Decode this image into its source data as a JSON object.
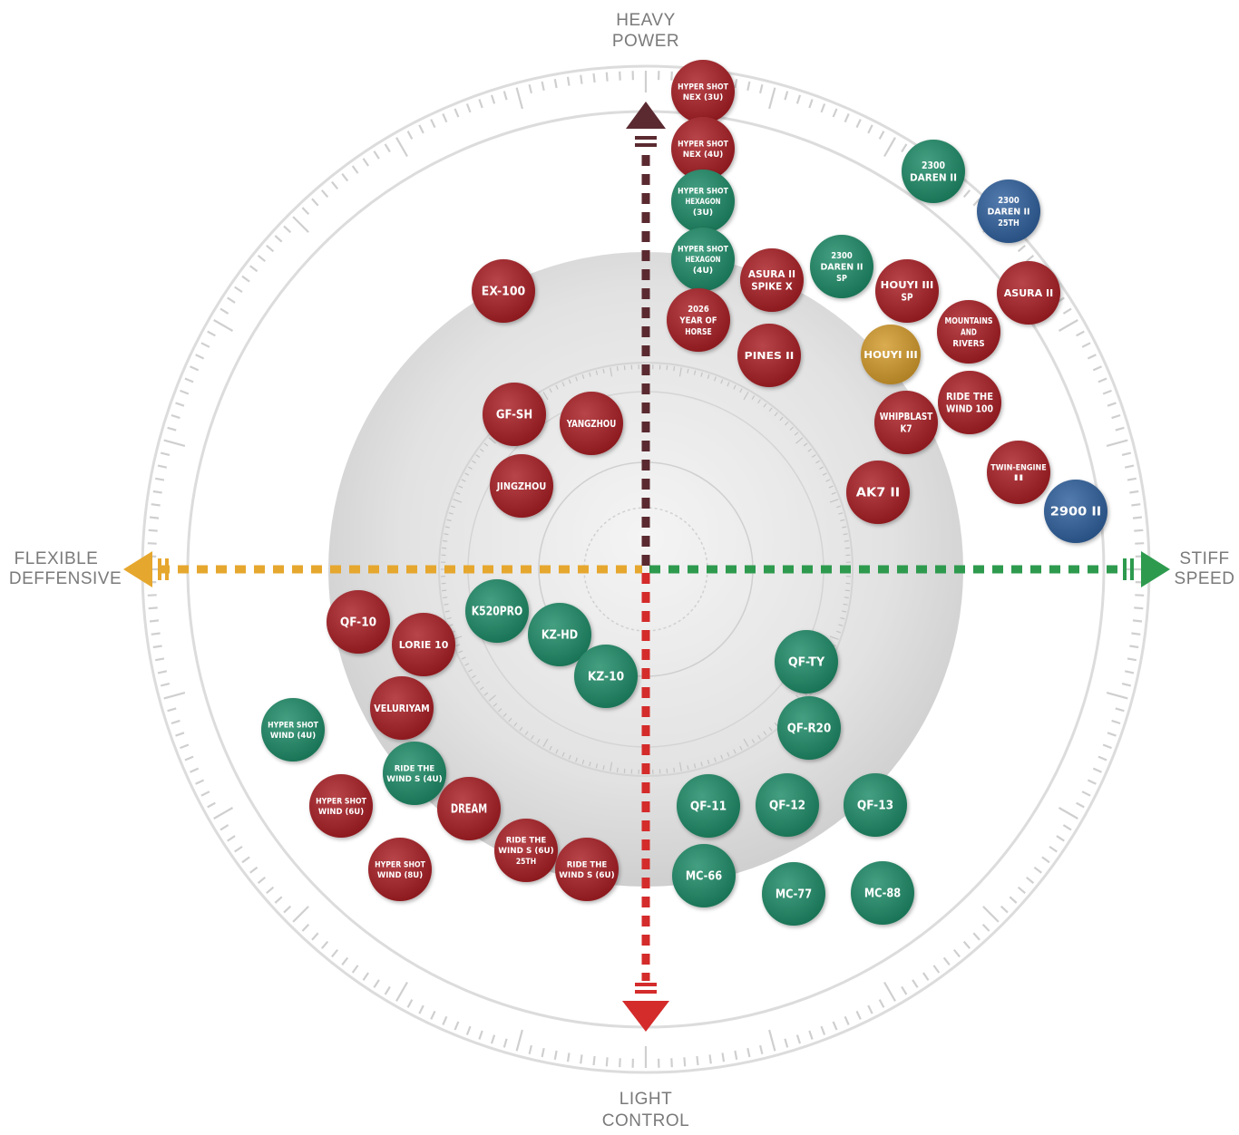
{
  "axes": {
    "top": [
      "HEAVY",
      "POWER"
    ],
    "bottom": [
      "LIGHT",
      "CONTROL"
    ],
    "left": [
      "FLEXIBLE",
      "DEFFENSIVE"
    ],
    "right": [
      "STIFF",
      "SPEED"
    ]
  },
  "colors": {
    "red": "#a81f24",
    "green": "#1f8a66",
    "blue": "#2d5e9c",
    "gold": "#d39a2c",
    "axis_up": "#5a2a30",
    "axis_down": "#d42b2b",
    "axis_left": "#e6a72e",
    "axis_right": "#2e9a4e",
    "ring": "#d8d8d8",
    "tick": "#cfcfcf"
  },
  "rackets": [
    {
      "id": "hyper-shot-nex-3u",
      "lines": [
        "HYPER SHOT",
        "NEX (3U)"
      ],
      "color": "red"
    },
    {
      "id": "hyper-shot-nex-4u",
      "lines": [
        "HYPER SHOT",
        "NEX (4U)"
      ],
      "color": "red"
    },
    {
      "id": "hyper-shot-hexagon-3u",
      "lines": [
        "HYPER SHOT",
        "HEXAGON",
        "(3U)"
      ],
      "color": "green"
    },
    {
      "id": "hyper-shot-hexagon-4u",
      "lines": [
        "HYPER SHOT",
        "HEXAGON",
        "(4U)"
      ],
      "color": "green"
    },
    {
      "id": "2026-year-of-horse",
      "lines": [
        "2026",
        "YEAR OF",
        "HORSE"
      ],
      "color": "red"
    },
    {
      "id": "asura-ii-spike-x",
      "lines": [
        "ASURA II",
        "SPIKE X"
      ],
      "color": "red"
    },
    {
      "id": "pines-ii",
      "lines": [
        "PINES II"
      ],
      "color": "red"
    },
    {
      "id": "2300-daren-ii-sp",
      "lines": [
        "2300",
        "DAREN II",
        "SP"
      ],
      "color": "green"
    },
    {
      "id": "houyi-iii-sp",
      "lines": [
        "HOUYI III",
        "SP"
      ],
      "color": "red"
    },
    {
      "id": "houyi-iii",
      "lines": [
        "HOUYI III"
      ],
      "color": "gold"
    },
    {
      "id": "2300-daren-ii",
      "lines": [
        "2300",
        "DAREN II"
      ],
      "color": "green"
    },
    {
      "id": "2300-daren-ii-25th",
      "lines": [
        "2300",
        "DAREN II",
        "25TH"
      ],
      "color": "blue"
    },
    {
      "id": "asura-ii",
      "lines": [
        "ASURA II"
      ],
      "color": "red"
    },
    {
      "id": "mountains-and-rivers",
      "lines": [
        "MOUNTAINS",
        "AND",
        "RIVERS"
      ],
      "color": "red"
    },
    {
      "id": "ride-the-wind-100",
      "lines": [
        "RIDE THE",
        "WIND 100"
      ],
      "color": "red"
    },
    {
      "id": "whipblast-k7",
      "lines": [
        "WHIPBLAST",
        "K7"
      ],
      "color": "red"
    },
    {
      "id": "twin-engine-ii",
      "lines": [
        "TWIN-ENGINE",
        "II"
      ],
      "color": "red"
    },
    {
      "id": "ak7-ii",
      "lines": [
        "AK7 II"
      ],
      "color": "red"
    },
    {
      "id": "2900-ii",
      "lines": [
        "2900 II"
      ],
      "color": "blue"
    },
    {
      "id": "ex-100",
      "lines": [
        "EX-100"
      ],
      "color": "red"
    },
    {
      "id": "gf-sh",
      "lines": [
        "GF-SH"
      ],
      "color": "red"
    },
    {
      "id": "yangzhou",
      "lines": [
        "YANGZHOU"
      ],
      "color": "red"
    },
    {
      "id": "jingzhou",
      "lines": [
        "JINGZHOU"
      ],
      "color": "red"
    },
    {
      "id": "k520pro",
      "lines": [
        "K520PRO"
      ],
      "color": "green"
    },
    {
      "id": "kz-hd",
      "lines": [
        "KZ-HD"
      ],
      "color": "green"
    },
    {
      "id": "kz-10",
      "lines": [
        "KZ-10"
      ],
      "color": "green"
    },
    {
      "id": "qf-10",
      "lines": [
        "QF-10"
      ],
      "color": "red"
    },
    {
      "id": "lorie-10",
      "lines": [
        "LORIE 10"
      ],
      "color": "red"
    },
    {
      "id": "veluriyam",
      "lines": [
        "VELURIYAM"
      ],
      "color": "red"
    },
    {
      "id": "hyper-shot-wind-4u",
      "lines": [
        "HYPER SHOT",
        "WIND (4U)"
      ],
      "color": "green"
    },
    {
      "id": "ride-the-wind-s-4u",
      "lines": [
        "RIDE THE",
        "WIND S (4U)"
      ],
      "color": "green"
    },
    {
      "id": "hyper-shot-wind-6u",
      "lines": [
        "HYPER SHOT",
        "WIND (6U)"
      ],
      "color": "red"
    },
    {
      "id": "dream",
      "lines": [
        "DREAM"
      ],
      "color": "red"
    },
    {
      "id": "ride-the-wind-s-6u-25th",
      "lines": [
        "RIDE THE",
        "WIND S (6U)",
        "25TH"
      ],
      "color": "red"
    },
    {
      "id": "ride-the-wind-s-6u",
      "lines": [
        "RIDE THE",
        "WIND S (6U)"
      ],
      "color": "red"
    },
    {
      "id": "hyper-shot-wind-8u",
      "lines": [
        "HYPER SHOT",
        "WIND (8U)"
      ],
      "color": "red"
    },
    {
      "id": "qf-ty",
      "lines": [
        "QF-TY"
      ],
      "color": "green"
    },
    {
      "id": "qf-r20",
      "lines": [
        "QF-R20"
      ],
      "color": "green"
    },
    {
      "id": "qf-11",
      "lines": [
        "QF-11"
      ],
      "color": "green"
    },
    {
      "id": "qf-12",
      "lines": [
        "QF-12"
      ],
      "color": "green"
    },
    {
      "id": "qf-13",
      "lines": [
        "QF-13"
      ],
      "color": "green"
    },
    {
      "id": "mc-66",
      "lines": [
        "MC-66"
      ],
      "color": "green"
    },
    {
      "id": "mc-77",
      "lines": [
        "MC-77"
      ],
      "color": "green"
    },
    {
      "id": "mc-88",
      "lines": [
        "MC-88"
      ],
      "color": "green"
    }
  ]
}
